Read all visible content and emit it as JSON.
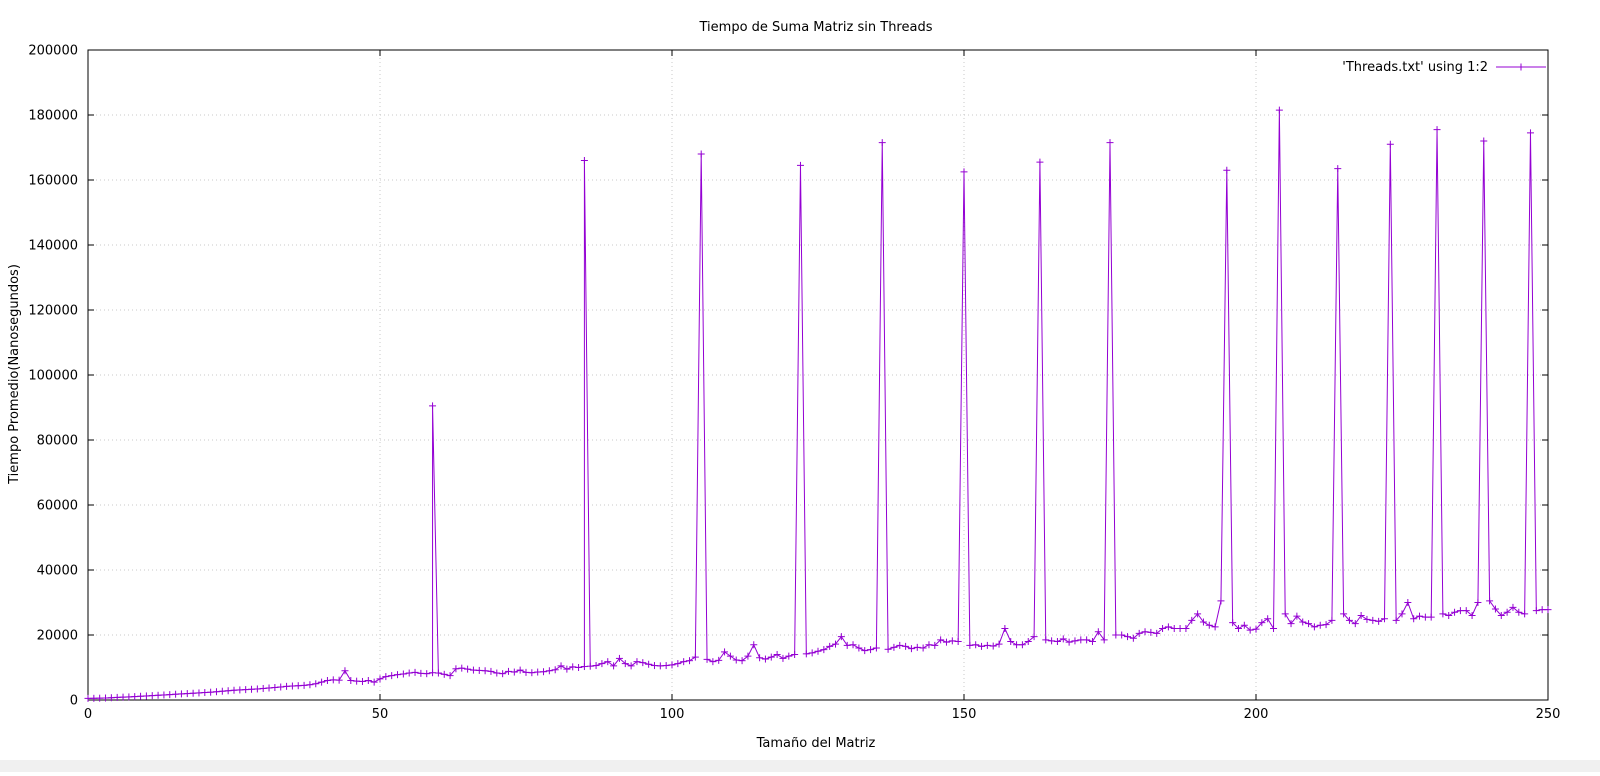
{
  "chart_data": {
    "type": "line",
    "title": "Tiempo de Suma Matriz sin Threads",
    "xlabel": "Tamaño del Matriz",
    "ylabel": "Tiempo Promedio(Nanosegundos)",
    "xlim": [
      0,
      250
    ],
    "ylim": [
      0,
      200000
    ],
    "xticks": [
      0,
      50,
      100,
      150,
      200,
      250
    ],
    "yticks": [
      0,
      20000,
      40000,
      60000,
      80000,
      100000,
      120000,
      140000,
      160000,
      180000,
      200000
    ],
    "grid": true,
    "legend_position": "top-right",
    "series": [
      {
        "name": "'Threads.txt' using 1:2",
        "color": "#9400d3",
        "marker": "plus",
        "points": [
          [
            0,
            500
          ],
          [
            1,
            520
          ],
          [
            2,
            560
          ],
          [
            3,
            620
          ],
          [
            4,
            700
          ],
          [
            5,
            800
          ],
          [
            6,
            880
          ],
          [
            7,
            950
          ],
          [
            8,
            1050
          ],
          [
            9,
            1150
          ],
          [
            10,
            1250
          ],
          [
            11,
            1350
          ],
          [
            12,
            1450
          ],
          [
            13,
            1550
          ],
          [
            14,
            1650
          ],
          [
            15,
            1780
          ],
          [
            16,
            1880
          ],
          [
            17,
            1980
          ],
          [
            18,
            2080
          ],
          [
            19,
            2180
          ],
          [
            20,
            2300
          ],
          [
            21,
            2400
          ],
          [
            22,
            2550
          ],
          [
            23,
            2700
          ],
          [
            24,
            2850
          ],
          [
            25,
            3000
          ],
          [
            26,
            3100
          ],
          [
            27,
            3200
          ],
          [
            28,
            3300
          ],
          [
            29,
            3400
          ],
          [
            30,
            3550
          ],
          [
            31,
            3700
          ],
          [
            32,
            3850
          ],
          [
            33,
            4000
          ],
          [
            34,
            4200
          ],
          [
            35,
            4300
          ],
          [
            36,
            4400
          ],
          [
            37,
            4500
          ],
          [
            38,
            4700
          ],
          [
            39,
            5000
          ],
          [
            40,
            5500
          ],
          [
            41,
            6000
          ],
          [
            42,
            6200
          ],
          [
            43,
            6100
          ],
          [
            44,
            9000
          ],
          [
            45,
            6000
          ],
          [
            46,
            5800
          ],
          [
            47,
            5700
          ],
          [
            48,
            6000
          ],
          [
            49,
            5500
          ],
          [
            50,
            6500
          ],
          [
            51,
            7200
          ],
          [
            52,
            7500
          ],
          [
            53,
            7800
          ],
          [
            54,
            8000
          ],
          [
            55,
            8300
          ],
          [
            56,
            8500
          ],
          [
            57,
            8200
          ],
          [
            58,
            8100
          ],
          [
            59,
            8400
          ],
          [
            59,
            90500
          ],
          [
            60,
            8300
          ],
          [
            61,
            7900
          ],
          [
            62,
            7500
          ],
          [
            63,
            9600
          ],
          [
            64,
            9800
          ],
          [
            65,
            9500
          ],
          [
            66,
            9200
          ],
          [
            67,
            9100
          ],
          [
            68,
            9000
          ],
          [
            69,
            8800
          ],
          [
            70,
            8300
          ],
          [
            71,
            8100
          ],
          [
            72,
            8800
          ],
          [
            73,
            8600
          ],
          [
            74,
            9200
          ],
          [
            75,
            8500
          ],
          [
            76,
            8400
          ],
          [
            77,
            8600
          ],
          [
            78,
            8700
          ],
          [
            79,
            9000
          ],
          [
            80,
            9300
          ],
          [
            81,
            10500
          ],
          [
            82,
            9500
          ],
          [
            83,
            10200
          ],
          [
            84,
            10000
          ],
          [
            85,
            10300
          ],
          [
            85,
            166000
          ],
          [
            86,
            10400
          ],
          [
            87,
            10600
          ],
          [
            88,
            11200
          ],
          [
            89,
            11800
          ],
          [
            90,
            10500
          ],
          [
            91,
            12800
          ],
          [
            92,
            11200
          ],
          [
            93,
            10500
          ],
          [
            94,
            11800
          ],
          [
            95,
            11500
          ],
          [
            96,
            11000
          ],
          [
            97,
            10600
          ],
          [
            98,
            10500
          ],
          [
            99,
            10600
          ],
          [
            100,
            10800
          ],
          [
            101,
            11200
          ],
          [
            102,
            11800
          ],
          [
            103,
            12100
          ],
          [
            104,
            13200
          ],
          [
            105,
            168000
          ],
          [
            106,
            12500
          ],
          [
            107,
            11800
          ],
          [
            108,
            12200
          ],
          [
            109,
            14800
          ],
          [
            110,
            13500
          ],
          [
            111,
            12300
          ],
          [
            112,
            12100
          ],
          [
            113,
            13500
          ],
          [
            114,
            17000
          ],
          [
            115,
            13000
          ],
          [
            116,
            12600
          ],
          [
            117,
            13200
          ],
          [
            118,
            14000
          ],
          [
            119,
            12800
          ],
          [
            120,
            13500
          ],
          [
            121,
            14000
          ],
          [
            122,
            164500
          ],
          [
            123,
            14200
          ],
          [
            124,
            14500
          ],
          [
            125,
            15000
          ],
          [
            126,
            15500
          ],
          [
            127,
            16500
          ],
          [
            128,
            17200
          ],
          [
            129,
            19500
          ],
          [
            130,
            16800
          ],
          [
            131,
            17000
          ],
          [
            132,
            16000
          ],
          [
            133,
            15200
          ],
          [
            134,
            15500
          ],
          [
            135,
            16000
          ],
          [
            136,
            171500
          ],
          [
            137,
            15600
          ],
          [
            138,
            16200
          ],
          [
            139,
            16800
          ],
          [
            140,
            16500
          ],
          [
            141,
            15800
          ],
          [
            142,
            16200
          ],
          [
            143,
            16000
          ],
          [
            144,
            17000
          ],
          [
            145,
            16800
          ],
          [
            146,
            18500
          ],
          [
            147,
            17800
          ],
          [
            148,
            18200
          ],
          [
            149,
            18000
          ],
          [
            150,
            162500
          ],
          [
            151,
            16800
          ],
          [
            152,
            17000
          ],
          [
            153,
            16500
          ],
          [
            154,
            16800
          ],
          [
            155,
            16600
          ],
          [
            156,
            17200
          ],
          [
            157,
            22000
          ],
          [
            158,
            18000
          ],
          [
            159,
            17000
          ],
          [
            160,
            17000
          ],
          [
            161,
            18000
          ],
          [
            162,
            19500
          ],
          [
            163,
            165500
          ],
          [
            164,
            18500
          ],
          [
            165,
            18200
          ],
          [
            166,
            18000
          ],
          [
            167,
            18800
          ],
          [
            168,
            17800
          ],
          [
            169,
            18200
          ],
          [
            170,
            18500
          ],
          [
            171,
            18500
          ],
          [
            172,
            18000
          ],
          [
            173,
            21000
          ],
          [
            174,
            18500
          ],
          [
            175,
            171500
          ],
          [
            176,
            20000
          ],
          [
            177,
            20000
          ],
          [
            178,
            19500
          ],
          [
            179,
            19000
          ],
          [
            180,
            20500
          ],
          [
            181,
            21000
          ],
          [
            182,
            20800
          ],
          [
            183,
            20500
          ],
          [
            184,
            22000
          ],
          [
            185,
            22500
          ],
          [
            186,
            22000
          ],
          [
            187,
            22000
          ],
          [
            188,
            22000
          ],
          [
            189,
            24500
          ],
          [
            190,
            26500
          ],
          [
            191,
            24000
          ],
          [
            192,
            23000
          ],
          [
            193,
            22500
          ],
          [
            194,
            30500
          ],
          [
            195,
            163000
          ],
          [
            196,
            23800
          ],
          [
            197,
            22000
          ],
          [
            198,
            23000
          ],
          [
            199,
            21500
          ],
          [
            200,
            21800
          ],
          [
            201,
            23800
          ],
          [
            202,
            25000
          ],
          [
            203,
            22000
          ],
          [
            204,
            181500
          ],
          [
            205,
            26500
          ],
          [
            206,
            23500
          ],
          [
            207,
            25800
          ],
          [
            208,
            24000
          ],
          [
            209,
            23500
          ],
          [
            210,
            22500
          ],
          [
            211,
            23000
          ],
          [
            212,
            23200
          ],
          [
            213,
            24500
          ],
          [
            214,
            163500
          ],
          [
            215,
            26500
          ],
          [
            216,
            24500
          ],
          [
            217,
            23500
          ],
          [
            218,
            26000
          ],
          [
            219,
            24800
          ],
          [
            220,
            24500
          ],
          [
            221,
            24200
          ],
          [
            222,
            25000
          ],
          [
            223,
            171000
          ],
          [
            224,
            24500
          ],
          [
            225,
            26500
          ],
          [
            226,
            30000
          ],
          [
            227,
            25000
          ],
          [
            228,
            25800
          ],
          [
            229,
            25500
          ],
          [
            230,
            25500
          ],
          [
            231,
            175500
          ],
          [
            232,
            26500
          ],
          [
            233,
            26000
          ],
          [
            234,
            27000
          ],
          [
            235,
            27500
          ],
          [
            236,
            27500
          ],
          [
            237,
            26000
          ],
          [
            238,
            30000
          ],
          [
            239,
            172000
          ],
          [
            240,
            30500
          ],
          [
            241,
            28000
          ],
          [
            242,
            26000
          ],
          [
            243,
            27000
          ],
          [
            244,
            28500
          ],
          [
            245,
            27000
          ],
          [
            246,
            26500
          ],
          [
            247,
            174500
          ],
          [
            248,
            27500
          ],
          [
            249,
            27800
          ],
          [
            250,
            27800
          ]
        ]
      }
    ]
  }
}
